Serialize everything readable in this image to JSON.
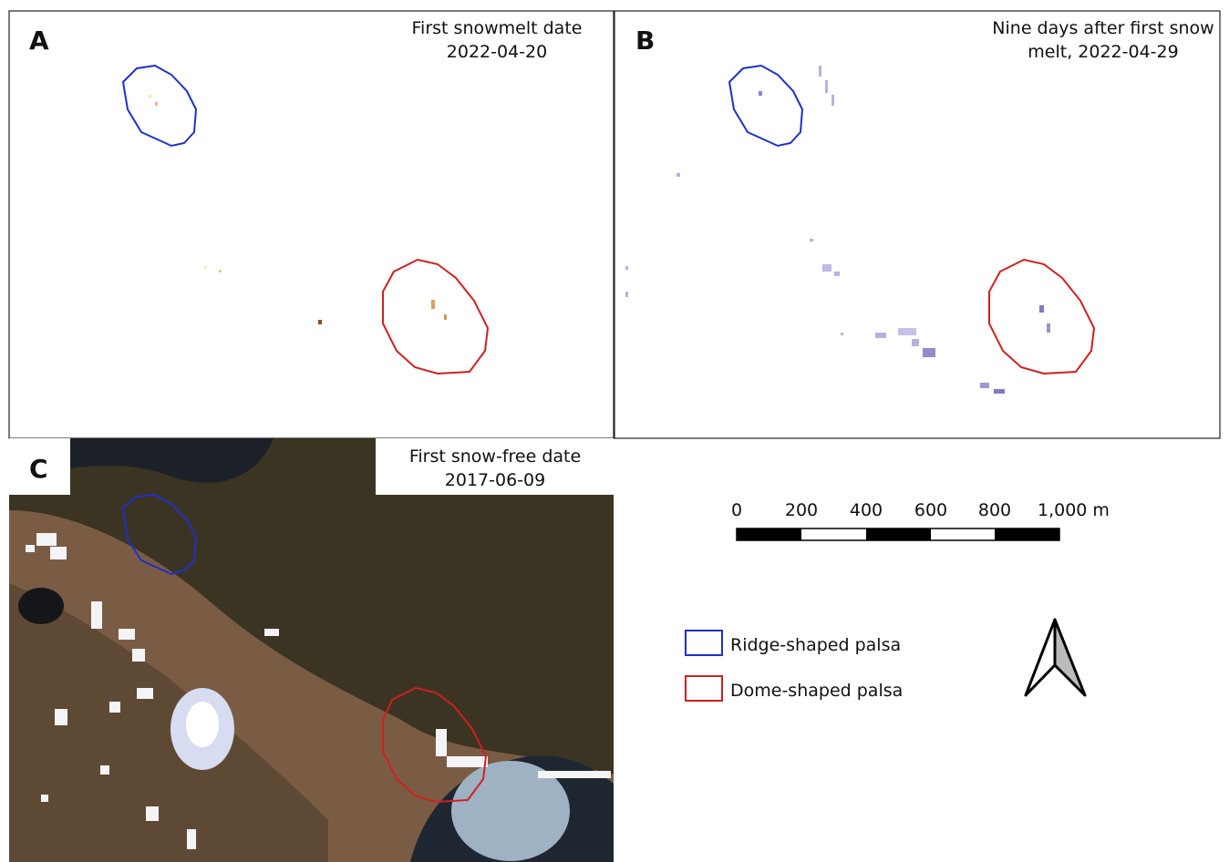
{
  "panels": [
    {
      "letter": "A",
      "title_lines": [
        "First snowmelt date",
        "2022-04-20"
      ]
    },
    {
      "letter": "B",
      "title_lines": [
        "Nine days after first snow",
        "melt, 2022-04-29"
      ]
    },
    {
      "letter": "C",
      "title_lines": [
        "First snow-free date",
        "2017-06-09"
      ]
    }
  ],
  "scale_bar": {
    "labels": [
      "0",
      "200",
      "400",
      "600",
      "800",
      "1,000 m"
    ]
  },
  "legend": [
    {
      "label": "Ridge-shaped palsa"
    },
    {
      "label": "Dome-shaped palsa"
    }
  ]
}
